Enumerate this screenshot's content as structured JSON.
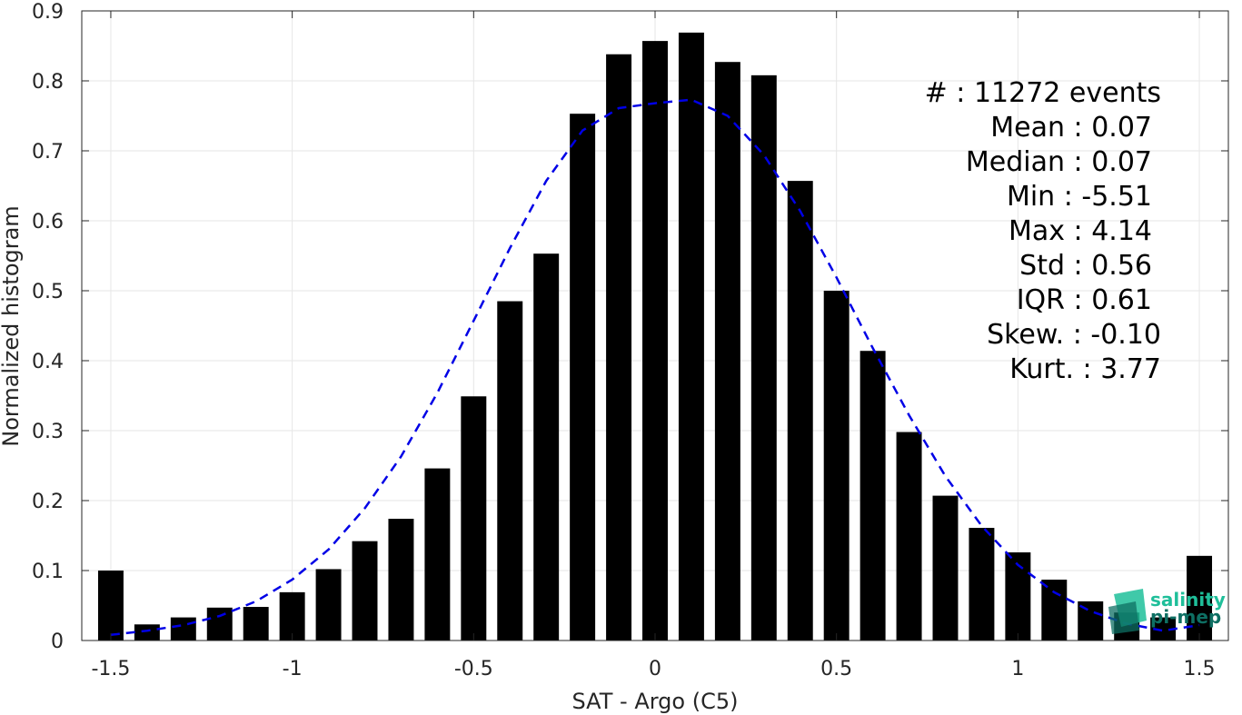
{
  "chart_data": {
    "type": "bar",
    "xlabel": "SAT - Argo (C5)",
    "ylabel": "Normalized histogram",
    "xlim": [
      -1.58,
      1.58
    ],
    "ylim": [
      0,
      0.9
    ],
    "x_ticks": [
      -1.5,
      -1,
      -0.5,
      0,
      0.5,
      1,
      1.5
    ],
    "x_tick_labels": [
      "-1.5",
      "-1",
      "-0.5",
      "0",
      "0.5",
      "1",
      "1.5"
    ],
    "y_ticks": [
      0,
      0.1,
      0.2,
      0.3,
      0.4,
      0.5,
      0.6,
      0.7,
      0.8,
      0.9
    ],
    "y_tick_labels": [
      "0",
      "0.1",
      "0.2",
      "0.3",
      "0.4",
      "0.5",
      "0.6",
      "0.7",
      "0.8",
      "0.9"
    ],
    "grid": true,
    "bin_width": 0.1,
    "bar_color": "#000000",
    "bins": [
      {
        "x": -1.5,
        "value": 0.1
      },
      {
        "x": -1.4,
        "value": 0.023
      },
      {
        "x": -1.3,
        "value": 0.033
      },
      {
        "x": -1.2,
        "value": 0.047
      },
      {
        "x": -1.1,
        "value": 0.048
      },
      {
        "x": -1.0,
        "value": 0.069
      },
      {
        "x": -0.9,
        "value": 0.102
      },
      {
        "x": -0.8,
        "value": 0.142
      },
      {
        "x": -0.7,
        "value": 0.174
      },
      {
        "x": -0.6,
        "value": 0.246
      },
      {
        "x": -0.5,
        "value": 0.349
      },
      {
        "x": -0.4,
        "value": 0.485
      },
      {
        "x": -0.3,
        "value": 0.553
      },
      {
        "x": -0.2,
        "value": 0.753
      },
      {
        "x": -0.1,
        "value": 0.838
      },
      {
        "x": 0.0,
        "value": 0.857
      },
      {
        "x": 0.1,
        "value": 0.869
      },
      {
        "x": 0.2,
        "value": 0.827
      },
      {
        "x": 0.3,
        "value": 0.808
      },
      {
        "x": 0.4,
        "value": 0.657
      },
      {
        "x": 0.5,
        "value": 0.5
      },
      {
        "x": 0.6,
        "value": 0.414
      },
      {
        "x": 0.7,
        "value": 0.298
      },
      {
        "x": 0.8,
        "value": 0.207
      },
      {
        "x": 0.9,
        "value": 0.161
      },
      {
        "x": 1.0,
        "value": 0.126
      },
      {
        "x": 1.1,
        "value": 0.087
      },
      {
        "x": 1.2,
        "value": 0.056
      },
      {
        "x": 1.3,
        "value": 0.04
      },
      {
        "x": 1.4,
        "value": 0.033
      },
      {
        "x": 1.5,
        "value": 0.121
      }
    ],
    "fit_curve": {
      "style": "dashed",
      "color": "#0000e6",
      "points": [
        [
          -1.5,
          0.008
        ],
        [
          -1.4,
          0.014
        ],
        [
          -1.3,
          0.022
        ],
        [
          -1.2,
          0.035
        ],
        [
          -1.1,
          0.056
        ],
        [
          -1.0,
          0.087
        ],
        [
          -0.9,
          0.13
        ],
        [
          -0.8,
          0.189
        ],
        [
          -0.7,
          0.263
        ],
        [
          -0.6,
          0.354
        ],
        [
          -0.5,
          0.457
        ],
        [
          -0.4,
          0.561
        ],
        [
          -0.3,
          0.657
        ],
        [
          -0.2,
          0.729
        ],
        [
          -0.1,
          0.761
        ],
        [
          0.0,
          0.768
        ],
        [
          0.1,
          0.773
        ],
        [
          0.2,
          0.75
        ],
        [
          0.3,
          0.694
        ],
        [
          0.4,
          0.614
        ],
        [
          0.5,
          0.519
        ],
        [
          0.6,
          0.418
        ],
        [
          0.7,
          0.322
        ],
        [
          0.8,
          0.235
        ],
        [
          0.9,
          0.164
        ],
        [
          1.0,
          0.108
        ],
        [
          1.1,
          0.069
        ],
        [
          1.2,
          0.042
        ],
        [
          1.3,
          0.024
        ],
        [
          1.4,
          0.014
        ],
        [
          1.5,
          0.022
        ]
      ]
    },
    "annotations": [
      "#  : 11272 events",
      "Mean : 0.07",
      "Median : 0.07",
      "Min : -5.51",
      "Max : 4.14",
      "Std : 0.56",
      "IQR : 0.61",
      "Skew. : -0.10",
      "Kurt. : 3.77"
    ]
  },
  "logo": {
    "line1": "salinity",
    "line2": "pi-mep",
    "color_light": "#1fbf9a",
    "color_dark": "#0e6f63"
  }
}
